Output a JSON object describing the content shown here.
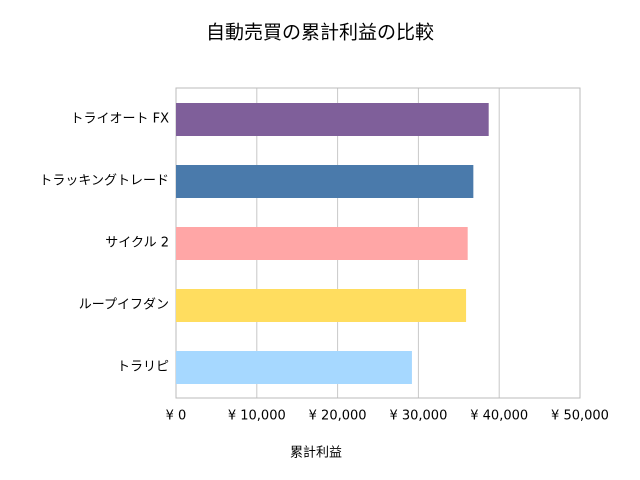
{
  "chart_data": {
    "type": "barh",
    "title": "自動売買の累計利益の比較",
    "xlabel": "累計利益",
    "categories": [
      "トライオート FX",
      "トラッキングトレード",
      "サイクル 2",
      "ループイフダン",
      "トラリピ"
    ],
    "values": [
      38700,
      36800,
      36100,
      35900,
      29200
    ],
    "colors": [
      "#7f5f9a",
      "#4a7aab",
      "#ffa6a6",
      "#ffdd5f",
      "#a6d8ff"
    ],
    "xlim": [
      0,
      50000
    ],
    "xticks": [
      {
        "value": 0,
        "label": "¥ 0"
      },
      {
        "value": 10000,
        "label": "¥ 10,000"
      },
      {
        "value": 20000,
        "label": "¥ 20,000"
      },
      {
        "value": 30000,
        "label": "¥ 30,000"
      },
      {
        "value": 40000,
        "label": "¥ 40,000"
      },
      {
        "value": 50000,
        "label": "¥ 50,000"
      }
    ],
    "grid": true
  }
}
